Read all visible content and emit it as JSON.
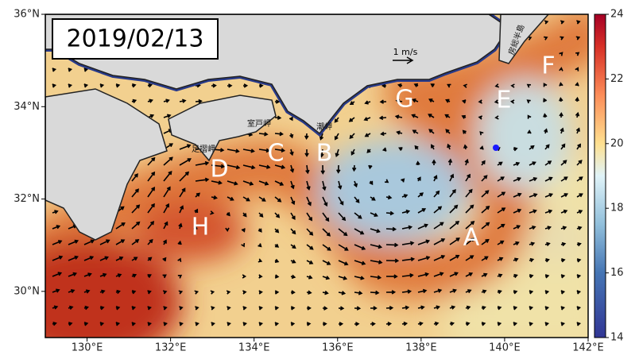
{
  "date": "2019/02/13",
  "scale_label": "1 m/s",
  "map": {
    "xlim": [
      129,
      142
    ],
    "ylim": [
      29,
      36
    ],
    "xticks": [
      {
        "value": 130,
        "label": "130°E"
      },
      {
        "value": 132,
        "label": "132°E"
      },
      {
        "value": 134,
        "label": "134°E"
      },
      {
        "value": 136,
        "label": "136°E"
      },
      {
        "value": 138,
        "label": "138°E"
      },
      {
        "value": 140,
        "label": "140°E"
      },
      {
        "value": 142,
        "label": "142°E"
      }
    ],
    "yticks": [
      {
        "value": 30,
        "label": "30°N"
      },
      {
        "value": 32,
        "label": "32°N"
      },
      {
        "value": 34,
        "label": "34°N"
      },
      {
        "value": 36,
        "label": "36°N"
      }
    ]
  },
  "colorbar": {
    "lim": [
      14,
      24
    ],
    "ticks": [
      14,
      16,
      18,
      20,
      22,
      24
    ]
  },
  "region_labels": [
    "A",
    "B",
    "C",
    "D",
    "E",
    "F",
    "G",
    "H"
  ],
  "place_names": [
    "室戸岬",
    "足摺岬",
    "潮岬",
    "房総半島"
  ]
}
